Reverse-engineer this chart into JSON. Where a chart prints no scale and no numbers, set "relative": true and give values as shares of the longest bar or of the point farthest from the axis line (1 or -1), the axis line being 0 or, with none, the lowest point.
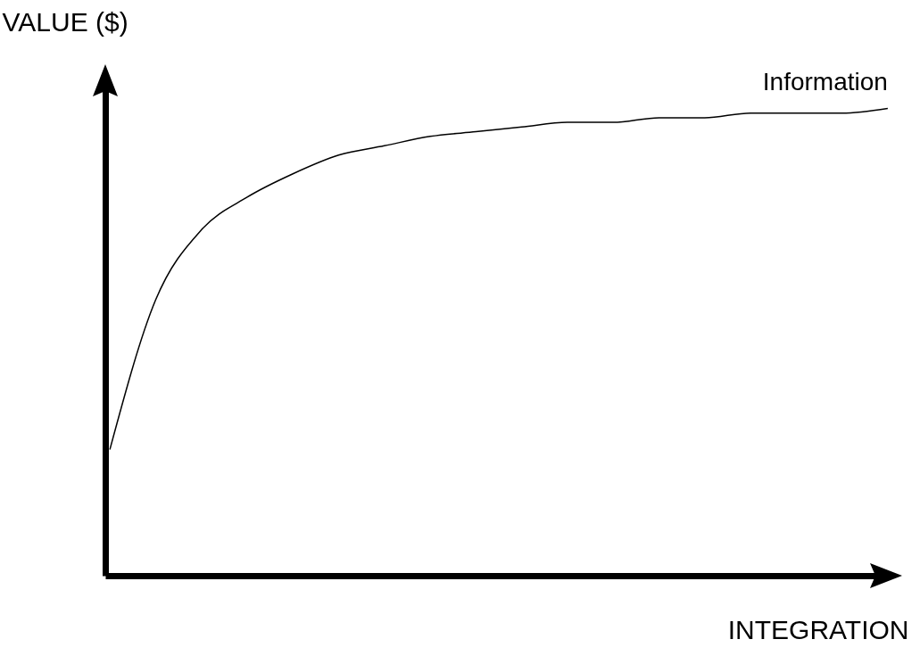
{
  "chart_data": {
    "type": "line",
    "relative": true,
    "xlabel": "INTEGRATION",
    "ylabel": "VALUE ($)",
    "tick_labels": false,
    "grid": false,
    "marker": "none",
    "categories": [
      null,
      null,
      null,
      null,
      null,
      null,
      null,
      null,
      null,
      null,
      null,
      null,
      null,
      null,
      null,
      null,
      null,
      null
    ],
    "series": [
      {
        "name": "Information",
        "color": "#000000",
        "values": [
          0.27,
          0.59,
          0.74,
          0.81,
          0.86,
          0.9,
          0.92,
          0.94,
          0.95,
          0.96,
          0.97,
          0.97,
          0.98,
          0.98,
          0.99,
          0.99,
          0.99,
          1.0
        ]
      }
    ]
  }
}
